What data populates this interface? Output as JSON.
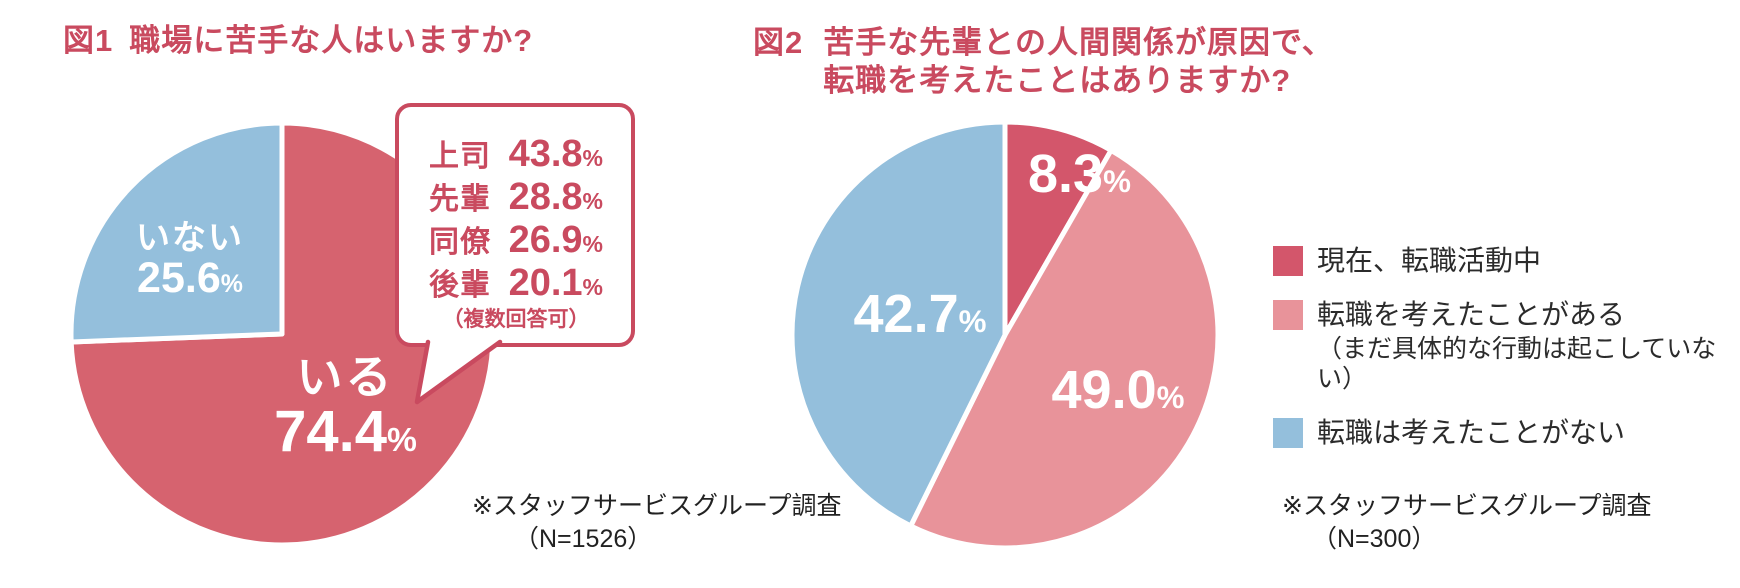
{
  "page": {
    "background": "#FFFFFF"
  },
  "colors": {
    "accent": "#C94A5F",
    "pie1_yes": "#D6636F",
    "pie1_no": "#94BFDC",
    "pie2_active": "#D3566B",
    "pie2_considered": "#E8939A",
    "pie2_never": "#94BFDC",
    "label_white": "#FFFFFF",
    "text": "#2B2B2B"
  },
  "figure1": {
    "fig_label": "図1",
    "title": "職場に苦手な人はいますか?",
    "slice_labels": {
      "no": {
        "text": "いない",
        "number": "25.6",
        "suffix": "%"
      },
      "yes": {
        "text": "いる",
        "number": "74.4",
        "suffix": "%"
      }
    },
    "callout": {
      "rows": [
        {
          "label": "上司",
          "number": "43.8",
          "suffix": "%"
        },
        {
          "label": "先輩",
          "number": "28.8",
          "suffix": "%"
        },
        {
          "label": "同僚",
          "number": "26.9",
          "suffix": "%"
        },
        {
          "label": "後輩",
          "number": "20.1",
          "suffix": "%"
        }
      ],
      "note": "（複数回答可）"
    },
    "source_line1": "※スタッフサービスグループ調査",
    "source_line2": "（N=1526）"
  },
  "figure2": {
    "fig_label": "図2",
    "title_line1": "苦手な先輩との人間関係が原因で、",
    "title_line2": "転職を考えたことはありますか?",
    "slice_labels": {
      "active": {
        "number": "8.3",
        "suffix": "%"
      },
      "considered": {
        "number": "49.0",
        "suffix": "%"
      },
      "never": {
        "number": "42.7",
        "suffix": "%"
      }
    },
    "legend": [
      {
        "label": "現在、転職活動中",
        "color": "#D3566B"
      },
      {
        "label": "転職を考えたことがある",
        "sublabel": "（まだ具体的な行動は起こしていない）",
        "color": "#E8939A"
      },
      {
        "label": "転職は考えたことがない",
        "color": "#94BFDC"
      }
    ],
    "source_line1": "※スタッフサービスグループ調査",
    "source_line2": "（N=300）"
  },
  "chart_data": [
    {
      "type": "pie",
      "fig_label": "図1",
      "title": "職場に苦手な人はいますか?",
      "labels": [
        "いる",
        "いない"
      ],
      "values": [
        74.4,
        25.6
      ],
      "colors": [
        "#D6636F",
        "#94BFDC"
      ],
      "unit": "%",
      "start_angle": "12-oclock",
      "direction": "clockwise",
      "callout_breakdown": {
        "items": [
          {
            "label": "上司",
            "value": 43.8
          },
          {
            "label": "先輩",
            "value": 28.8
          },
          {
            "label": "同僚",
            "value": 26.9
          },
          {
            "label": "後輩",
            "value": 20.1
          }
        ],
        "note": "（複数回答可）",
        "unit": "%"
      },
      "source": "※スタッフサービスグループ調査（N=1526）"
    },
    {
      "type": "pie",
      "fig_label": "図2",
      "title": "苦手な先輩との人間関係が原因で、転職を考えたことはありますか?",
      "labels": [
        "現在、転職活動中",
        "転職を考えたことがある（まだ具体的な行動は起こしていない）",
        "転職は考えたことがない"
      ],
      "values": [
        8.3,
        49.0,
        42.7
      ],
      "colors": [
        "#D3566B",
        "#E8939A",
        "#94BFDC"
      ],
      "unit": "%",
      "start_angle": "12-oclock",
      "direction": "clockwise",
      "legend_position": "right",
      "source": "※スタッフサービスグループ調査（N=300）"
    }
  ]
}
